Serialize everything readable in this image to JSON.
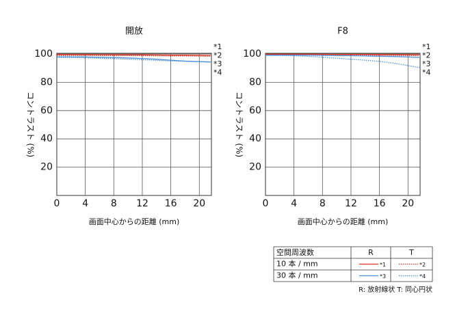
{
  "chart_data": [
    {
      "type": "line",
      "title": "開放",
      "xlabel": "画面中心からの距離 (mm)",
      "ylabel": "コントラスト (%)",
      "x": [
        0,
        2,
        4,
        6,
        8,
        10,
        12,
        14,
        16,
        18,
        20,
        21.6
      ],
      "xlim": [
        0,
        21.7
      ],
      "ylim": [
        0,
        100
      ],
      "xticks": [
        0,
        4,
        8,
        12,
        16,
        20
      ],
      "yticks": [
        20,
        40,
        60,
        80,
        100
      ],
      "grid": true,
      "series": [
        {
          "name": "*1",
          "color": "#e03020",
          "linestyle": "solid",
          "values": [
            99.6,
            99.6,
            99.6,
            99.5,
            99.5,
            99.4,
            99.4,
            99.3,
            99.2,
            99.2,
            99.1,
            99.0
          ]
        },
        {
          "name": "*2",
          "color": "#e03020",
          "linestyle": "dotted",
          "values": [
            99.0,
            99.0,
            99.0,
            98.9,
            98.9,
            98.8,
            98.8,
            98.7,
            98.6,
            98.6,
            98.5,
            98.4
          ]
        },
        {
          "name": "*3",
          "color": "#4a90d9",
          "linestyle": "solid",
          "values": [
            98.0,
            98.0,
            97.9,
            97.7,
            97.5,
            97.2,
            96.8,
            96.3,
            95.6,
            95.0,
            94.6,
            94.3
          ]
        },
        {
          "name": "*4",
          "color": "#4a90d9",
          "linestyle": "dotted",
          "values": [
            97.6,
            97.5,
            97.3,
            97.0,
            96.7,
            96.3,
            95.9,
            95.5,
            95.1,
            94.8,
            94.6,
            94.5
          ]
        }
      ]
    },
    {
      "type": "line",
      "title": "F8",
      "xlabel": "画面中心からの距離 (mm)",
      "ylabel": "コントラスト (%)",
      "x": [
        0,
        2,
        4,
        6,
        8,
        10,
        12,
        14,
        16,
        18,
        20,
        21.6
      ],
      "xlim": [
        0,
        21.7
      ],
      "ylim": [
        0,
        100
      ],
      "xticks": [
        0,
        4,
        8,
        12,
        16,
        20
      ],
      "yticks": [
        20,
        40,
        60,
        80,
        100
      ],
      "grid": true,
      "series": [
        {
          "name": "*1",
          "color": "#e03020",
          "linestyle": "solid",
          "values": [
            99.8,
            99.8,
            99.8,
            99.8,
            99.8,
            99.7,
            99.7,
            99.7,
            99.6,
            99.6,
            99.5,
            99.5
          ]
        },
        {
          "name": "*2",
          "color": "#e03020",
          "linestyle": "dotted",
          "values": [
            99.6,
            99.6,
            99.6,
            99.5,
            99.5,
            99.4,
            99.3,
            99.2,
            99.1,
            99.0,
            98.9,
            98.8
          ]
        },
        {
          "name": "*3",
          "color": "#4a90d9",
          "linestyle": "solid",
          "values": [
            99.2,
            99.2,
            99.2,
            99.1,
            99.0,
            98.9,
            98.8,
            98.6,
            98.4,
            98.2,
            97.9,
            97.6
          ]
        },
        {
          "name": "*4",
          "color": "#4a90d9",
          "linestyle": "dotted",
          "values": [
            99.0,
            99.0,
            98.8,
            98.3,
            97.7,
            97.0,
            96.3,
            95.6,
            94.8,
            93.5,
            91.8,
            90.4
          ]
        }
      ]
    }
  ],
  "legend": {
    "header": [
      "空間周波数",
      "R",
      "T"
    ],
    "rows": [
      "10 本 / mm",
      "30 本 / mm"
    ],
    "note": "R: 放射線状  T: 同心円状"
  }
}
